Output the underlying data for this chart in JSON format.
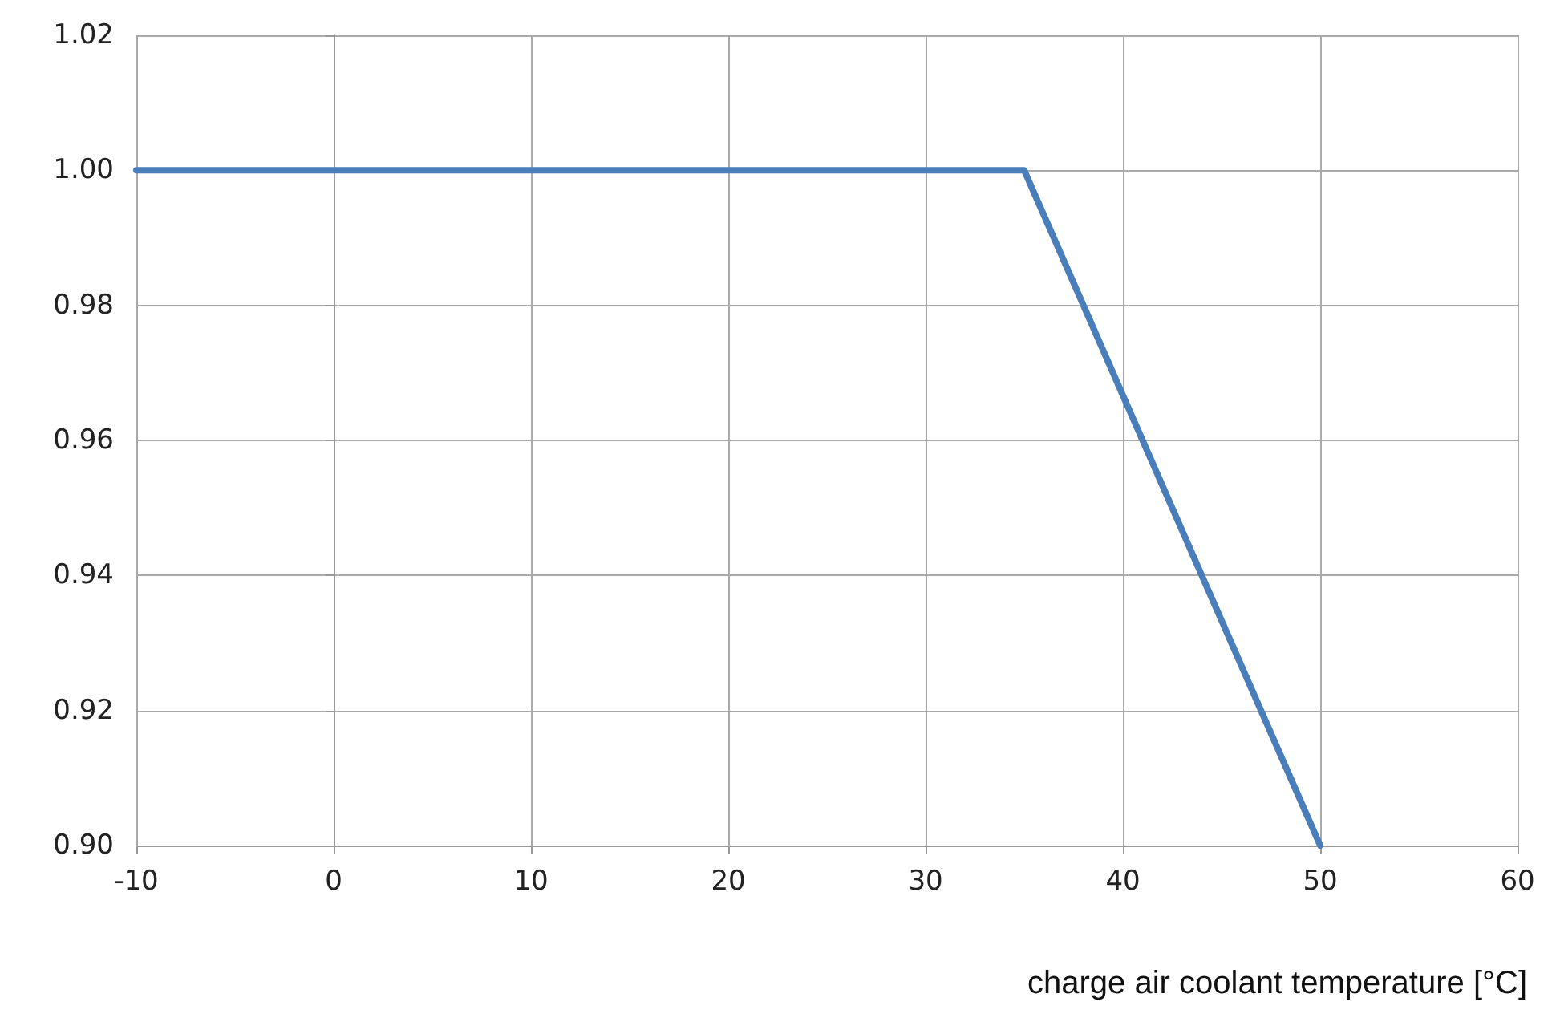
{
  "chart_data": {
    "type": "line",
    "xlabel": "charge air coolant temperature [°C]",
    "x": [
      -10,
      35,
      50
    ],
    "series": [
      {
        "color": "#4a7ebb",
        "values": [
          1.0,
          1.0,
          0.9
        ]
      }
    ],
    "xlim": [
      -10,
      60
    ],
    "xticks": [
      -10,
      0,
      10,
      20,
      30,
      40,
      50,
      60
    ],
    "ylim": [
      0.9,
      1.02
    ],
    "yticks": [
      {
        "value": 0.9,
        "label": "0.90"
      },
      {
        "value": 0.92,
        "label": "0.92"
      },
      {
        "value": 0.94,
        "label": "0.94"
      },
      {
        "value": 0.96,
        "label": "0.96"
      },
      {
        "value": 0.98,
        "label": "0.98"
      },
      {
        "value": 1.0,
        "label": "1.00"
      },
      {
        "value": 1.02,
        "label": "1.02"
      }
    ],
    "grid": true,
    "marker": "none",
    "line_style": "solid"
  }
}
